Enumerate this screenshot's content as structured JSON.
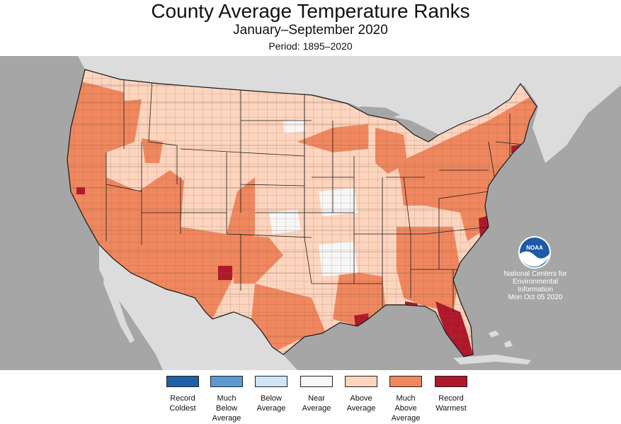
{
  "header": {
    "title": "County Average Temperature Ranks",
    "subtitle": "January–September 2020",
    "period": "Period: 1895–2020"
  },
  "credit": {
    "line1": "National Centers for",
    "line2": "Environmental",
    "line3": "Information",
    "date": "Mon Oct 05 2020"
  },
  "logo": {
    "text": "NOAA",
    "icon": "noaa-logo-icon"
  },
  "colors": {
    "record_coldest": "#1f5fa6",
    "much_below": "#5b9bd2",
    "below": "#cfe4f4",
    "near": "#f7f7f7",
    "above": "#fdd5bf",
    "much_above": "#f0875e",
    "record_warmest": "#b0182a",
    "land_other": "#dcdcdc",
    "water": "#a6a6a6"
  },
  "legend": [
    {
      "key": "record_coldest",
      "lines": [
        "Record",
        "Coldest"
      ]
    },
    {
      "key": "much_below",
      "lines": [
        "Much",
        "Below",
        "Average"
      ]
    },
    {
      "key": "below",
      "lines": [
        "Below",
        "Average"
      ]
    },
    {
      "key": "near",
      "lines": [
        "Near",
        "Average"
      ]
    },
    {
      "key": "above",
      "lines": [
        "Above",
        "Average"
      ]
    },
    {
      "key": "much_above",
      "lines": [
        "Much",
        "Above",
        "Average"
      ]
    },
    {
      "key": "record_warmest",
      "lines": [
        "Record",
        "Warmest"
      ]
    }
  ]
}
